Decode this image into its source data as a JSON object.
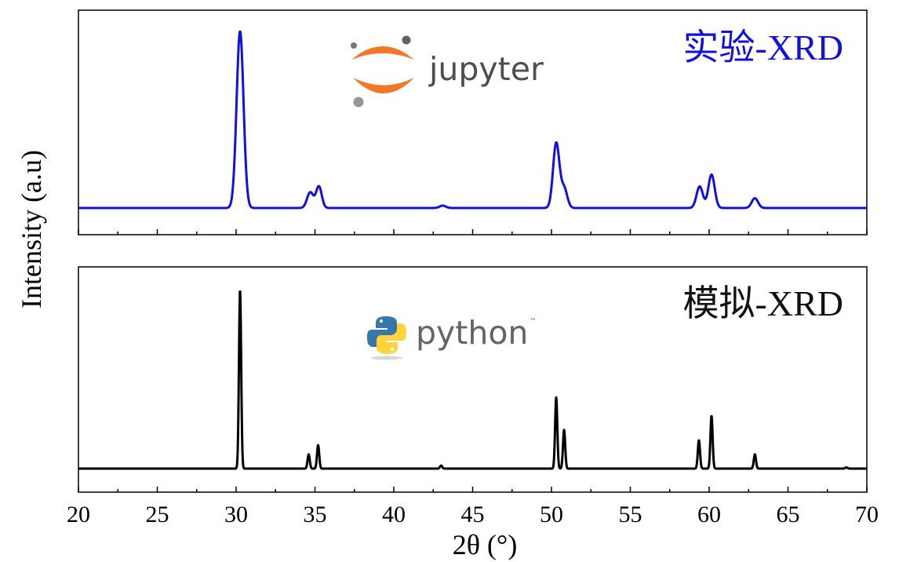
{
  "chart_data": [
    {
      "type": "line",
      "panel": "top",
      "label": "实验-XRD",
      "logo_text": "jupyter",
      "color": "#1010e0",
      "xlim": [
        20,
        70
      ],
      "baseline": 0.1,
      "ymax": 1.0,
      "peaks": [
        {
          "x": 30.25,
          "h": 0.9,
          "w": 0.22
        },
        {
          "x": 34.7,
          "h": 0.08,
          "w": 0.2
        },
        {
          "x": 35.25,
          "h": 0.11,
          "w": 0.18
        },
        {
          "x": 43.1,
          "h": 0.012,
          "w": 0.2
        },
        {
          "x": 50.3,
          "h": 0.33,
          "w": 0.2
        },
        {
          "x": 50.8,
          "h": 0.1,
          "w": 0.2
        },
        {
          "x": 59.4,
          "h": 0.11,
          "w": 0.2
        },
        {
          "x": 60.15,
          "h": 0.17,
          "w": 0.2
        },
        {
          "x": 62.9,
          "h": 0.05,
          "w": 0.2
        }
      ]
    },
    {
      "type": "line",
      "panel": "bottom",
      "label": "模拟-XRD",
      "logo_text": "python",
      "logo_tm": "™",
      "color": "#000000",
      "xlim": [
        20,
        70
      ],
      "baseline": 0.1,
      "ymax": 1.0,
      "peaks": [
        {
          "x": 30.25,
          "h": 0.88,
          "w": 0.07
        },
        {
          "x": 34.6,
          "h": 0.07,
          "w": 0.07
        },
        {
          "x": 35.2,
          "h": 0.115,
          "w": 0.07
        },
        {
          "x": 43.0,
          "h": 0.015,
          "w": 0.07
        },
        {
          "x": 50.3,
          "h": 0.35,
          "w": 0.07
        },
        {
          "x": 50.8,
          "h": 0.19,
          "w": 0.07
        },
        {
          "x": 59.35,
          "h": 0.14,
          "w": 0.07
        },
        {
          "x": 60.15,
          "h": 0.26,
          "w": 0.07
        },
        {
          "x": 62.9,
          "h": 0.07,
          "w": 0.07
        },
        {
          "x": 68.7,
          "h": 0.006,
          "w": 0.07
        }
      ]
    }
  ],
  "axes": {
    "xlabel": "2θ (°)",
    "ylabel": "Intensity (a.u)",
    "xticks": [
      "20",
      "25",
      "30",
      "35",
      "40",
      "45",
      "50",
      "55",
      "60",
      "65",
      "70"
    ],
    "xtick_values": [
      20,
      25,
      30,
      35,
      40,
      45,
      50,
      55,
      60,
      65,
      70
    ]
  }
}
